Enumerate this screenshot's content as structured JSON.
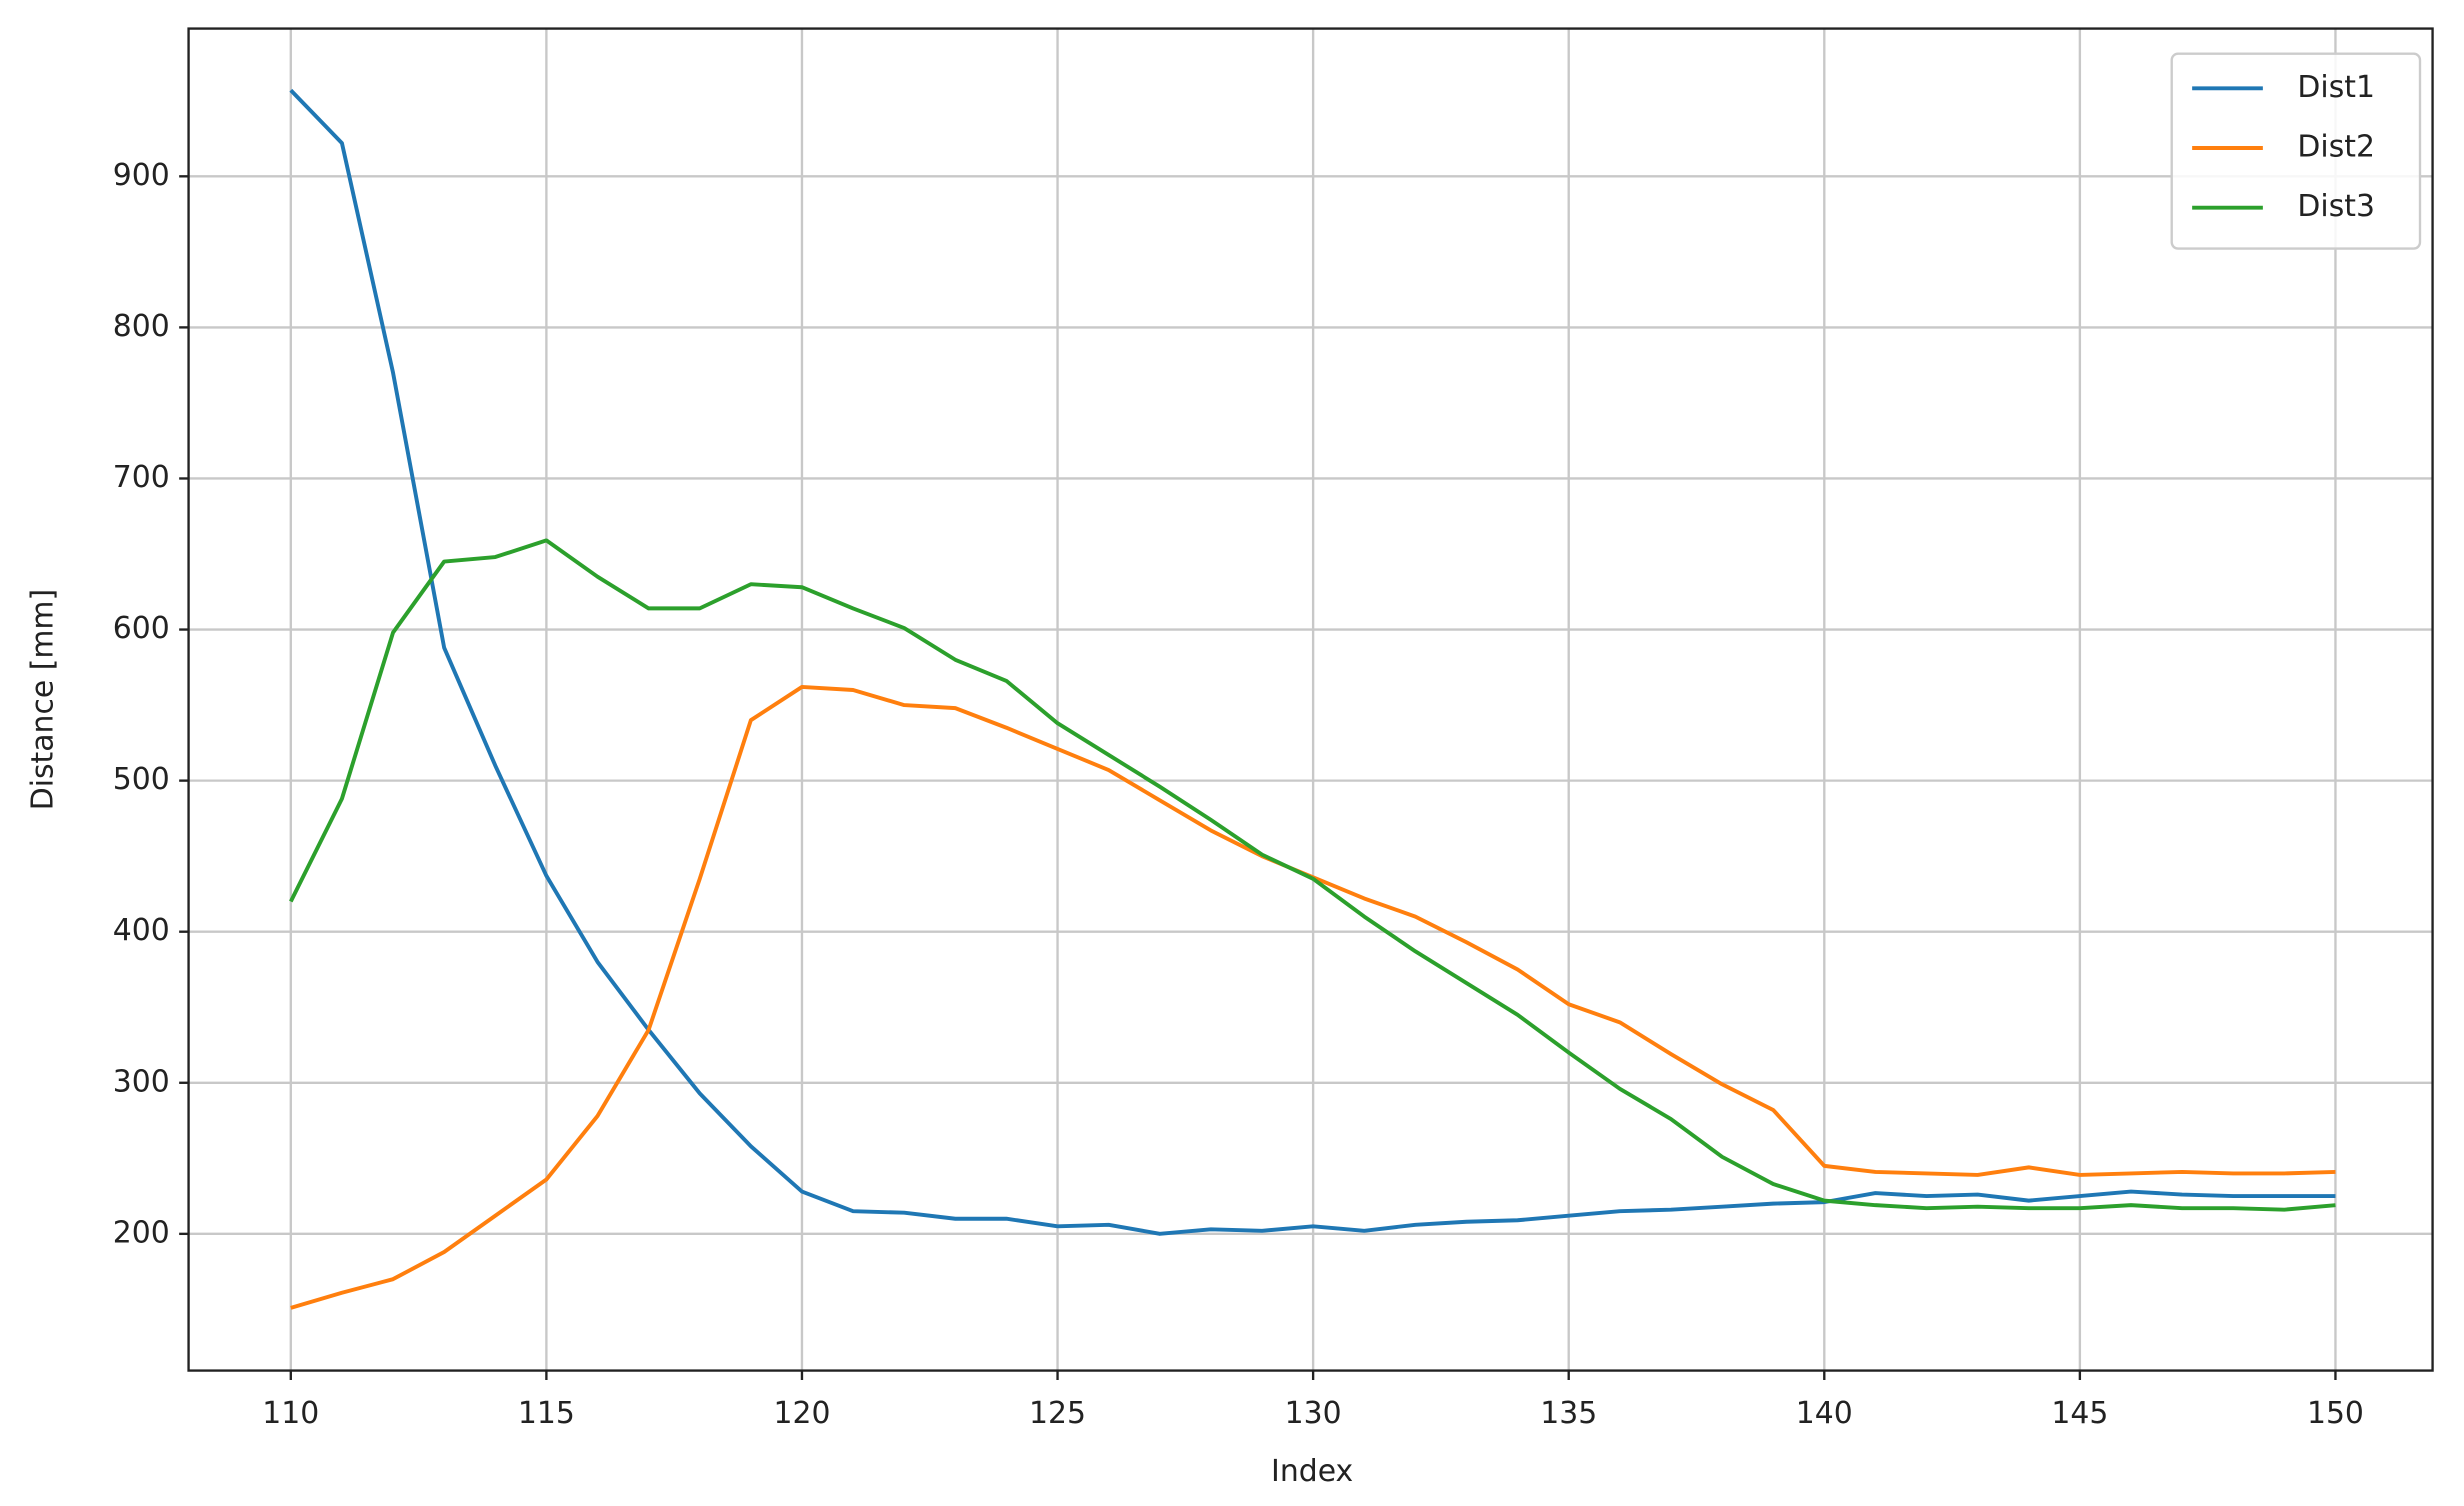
{
  "chart_data": {
    "type": "line",
    "x_label": "Index",
    "y_label": "Distance [mm]",
    "x": [
      110,
      111,
      112,
      113,
      114,
      115,
      116,
      117,
      118,
      119,
      120,
      121,
      122,
      123,
      124,
      125,
      126,
      127,
      128,
      129,
      130,
      131,
      132,
      133,
      134,
      135,
      136,
      137,
      138,
      139,
      140,
      141,
      142,
      143,
      144,
      145,
      146,
      147,
      148,
      149,
      150
    ],
    "series": [
      {
        "name": "Dist1",
        "color": "#1f77b4",
        "values": [
          957,
          922,
          770,
          588,
          510,
          437,
          380,
          335,
          293,
          258,
          228,
          215,
          214,
          210,
          210,
          205,
          206,
          200,
          203,
          202,
          205,
          202,
          206,
          208,
          209,
          212,
          215,
          216,
          218,
          220,
          221,
          227,
          225,
          226,
          222,
          225,
          228,
          226,
          225,
          225,
          225
        ]
      },
      {
        "name": "Dist2",
        "color": "#ff7f0e",
        "values": [
          151,
          161,
          170,
          188,
          212,
          236,
          278,
          335,
          435,
          540,
          562,
          560,
          550,
          548,
          535,
          521,
          507,
          487,
          467,
          450,
          436,
          422,
          410,
          393,
          375,
          352,
          340,
          319,
          299,
          282,
          245,
          241,
          240,
          239,
          244,
          239,
          240,
          241,
          240,
          240,
          241
        ]
      },
      {
        "name": "Dist3",
        "color": "#2ca02c",
        "values": [
          420,
          488,
          598,
          645,
          648,
          659,
          635,
          614,
          614,
          630,
          628,
          614,
          601,
          580,
          566,
          538,
          517,
          496,
          474,
          451,
          435,
          410,
          387,
          366,
          345,
          320,
          296,
          276,
          251,
          233,
          222,
          219,
          217,
          218,
          217,
          217,
          219,
          217,
          217,
          216,
          219
        ]
      }
    ],
    "xlim": [
      108,
      151.9
    ],
    "ylim": [
      109.5,
      997.8
    ],
    "xticks": [
      110,
      115,
      120,
      125,
      130,
      135,
      140,
      145,
      150
    ],
    "yticks": [
      200,
      300,
      400,
      500,
      600,
      700,
      800,
      900
    ],
    "grid": true,
    "legend": "upper right"
  }
}
